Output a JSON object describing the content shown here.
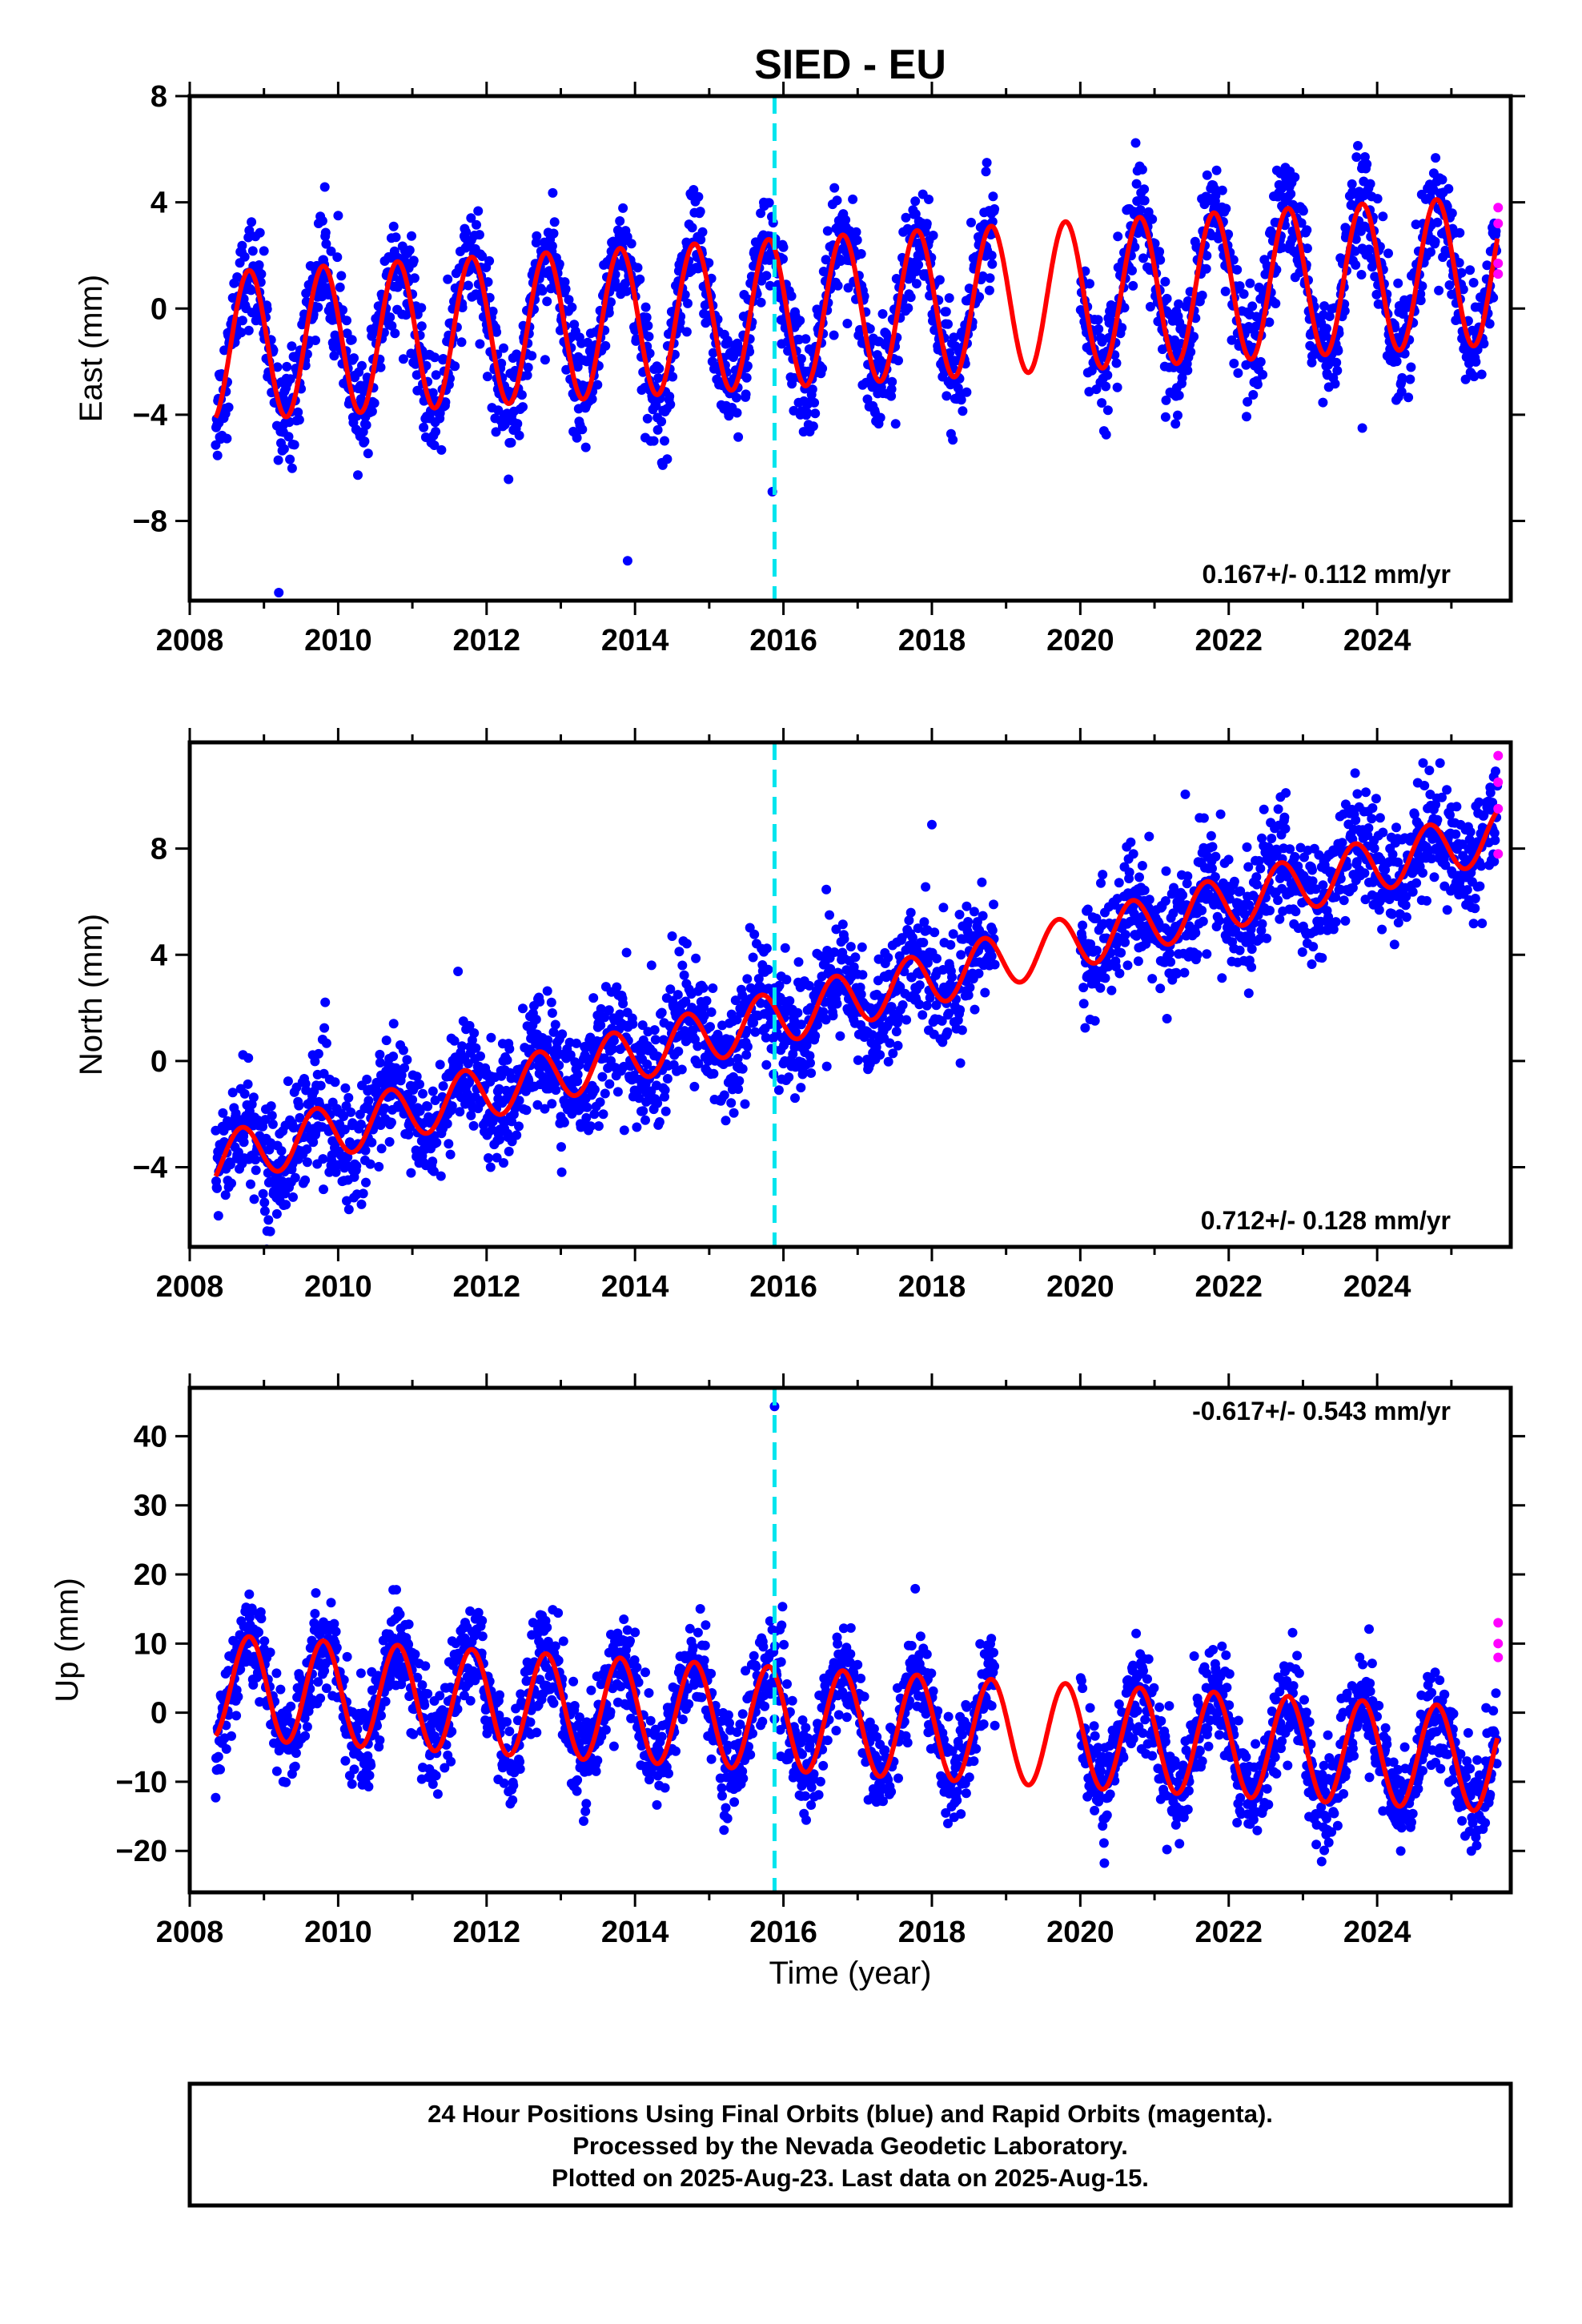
{
  "title": "SIED - EU",
  "chart_data": [
    {
      "type": "scatter",
      "panel": "east",
      "ylabel": "East (mm)",
      "xlabel": "",
      "xlim": [
        2008.0,
        2025.8
      ],
      "ylim": [
        -11,
        8
      ],
      "yticks": [
        -8,
        -4,
        0,
        4,
        8
      ],
      "ytick_labels": [
        "−8",
        "−4",
        "0",
        "4",
        "8"
      ],
      "xticks": [
        2008,
        2010,
        2012,
        2014,
        2016,
        2018,
        2020,
        2022,
        2024
      ],
      "xtick_labels": [
        "2008",
        "2010",
        "2012",
        "2014",
        "2016",
        "2018",
        "2020",
        "2022",
        "2024"
      ],
      "rate": "0.167+/- 0.112 mm/yr",
      "rate_position": "bottom-right",
      "event_line_x": 2015.88,
      "data_start": 2008.35,
      "data_end": 2025.62,
      "gap": [
        2018.85,
        2020.0
      ],
      "rapid_points": [
        {
          "x": 2025.63,
          "y": 3.8
        },
        {
          "x": 2025.63,
          "y": 3.2
        },
        {
          "x": 2025.63,
          "y": 1.7
        },
        {
          "x": 2025.63,
          "y": 1.3
        }
      ],
      "outliers": [
        {
          "x": 2009.2,
          "y": -10.7
        },
        {
          "x": 2013.9,
          "y": -9.5
        },
        {
          "x": 2015.85,
          "y": -6.9
        },
        {
          "x": 2023.8,
          "y": -4.5
        }
      ],
      "series": [
        {
          "name": "Final Orbits",
          "color": "#0000ff",
          "trend": {
            "intercept": -1.5,
            "slope": 0.167
          },
          "annual_amplitude": 2.8,
          "noise": 1.0
        },
        {
          "name": "Rapid Orbits",
          "color": "#ff00ff"
        },
        {
          "name": "Model",
          "color": "#ff0000"
        }
      ]
    },
    {
      "type": "scatter",
      "panel": "north",
      "ylabel": "North (mm)",
      "xlabel": "",
      "xlim": [
        2008.0,
        2025.8
      ],
      "ylim": [
        -7,
        12
      ],
      "yticks": [
        -4,
        0,
        4,
        8
      ],
      "ytick_labels": [
        "−4",
        "0",
        "4",
        "8"
      ],
      "xticks": [
        2008,
        2010,
        2012,
        2014,
        2016,
        2018,
        2020,
        2022,
        2024
      ],
      "xtick_labels": [
        "2008",
        "2010",
        "2012",
        "2014",
        "2016",
        "2018",
        "2020",
        "2022",
        "2024"
      ],
      "rate": "0.712+/- 0.128 mm/yr",
      "rate_position": "bottom-right",
      "event_line_x": 2015.88,
      "data_start": 2008.35,
      "data_end": 2025.62,
      "gap": [
        2018.85,
        2020.0
      ],
      "rapid_points": [
        {
          "x": 2025.63,
          "y": 11.5
        },
        {
          "x": 2025.63,
          "y": 10.5
        },
        {
          "x": 2025.63,
          "y": 9.5
        },
        {
          "x": 2025.63,
          "y": 7.8
        }
      ],
      "outliers": [
        {
          "x": 2018.0,
          "y": 8.9
        },
        {
          "x": 2014.5,
          "y": 4.7
        }
      ],
      "series": [
        {
          "name": "Final Orbits",
          "color": "#0000ff",
          "trend": {
            "intercept": -4.0,
            "slope": 0.712
          },
          "annual_amplitude": 1.0,
          "noise": 1.1
        },
        {
          "name": "Rapid Orbits",
          "color": "#ff00ff"
        },
        {
          "name": "Model",
          "color": "#ff0000"
        }
      ]
    },
    {
      "type": "scatter",
      "panel": "up",
      "ylabel": "Up (mm)",
      "xlabel": "Time (year)",
      "xlim": [
        2008.0,
        2025.8
      ],
      "ylim": [
        -26,
        47
      ],
      "yticks": [
        -20,
        -10,
        0,
        10,
        20,
        30,
        40
      ],
      "ytick_labels": [
        "−20",
        "−10",
        "0",
        "10",
        "20",
        "30",
        "40"
      ],
      "xticks": [
        2008,
        2010,
        2012,
        2014,
        2016,
        2018,
        2020,
        2022,
        2024
      ],
      "xtick_labels": [
        "2008",
        "2010",
        "2012",
        "2014",
        "2016",
        "2018",
        "2020",
        "2022",
        "2024"
      ],
      "rate": "-0.617+/- 0.543 mm/yr",
      "rate_position": "top-right",
      "event_line_x": 2015.88,
      "data_start": 2008.35,
      "data_end": 2025.62,
      "gap": [
        2018.85,
        2020.0
      ],
      "rapid_points": [
        {
          "x": 2025.63,
          "y": 13.0
        },
        {
          "x": 2025.63,
          "y": 10.0
        },
        {
          "x": 2025.63,
          "y": 8.0
        }
      ],
      "outliers": [
        {
          "x": 2015.88,
          "y": 44.3
        }
      ],
      "series": [
        {
          "name": "Final Orbits",
          "color": "#0000ff",
          "trend": {
            "intercept": 4.0,
            "slope": -0.617
          },
          "annual_amplitude": 7.5,
          "noise": 3.5
        },
        {
          "name": "Rapid Orbits",
          "color": "#ff00ff"
        },
        {
          "name": "Model",
          "color": "#ff0000"
        }
      ]
    }
  ],
  "footer": {
    "line1": "24 Hour Positions Using Final Orbits (blue) and Rapid Orbits (magenta).",
    "line2": "Processed by the Nevada Geodetic Laboratory.",
    "line3": "Plotted on 2025-Aug-23. Last data on 2025-Aug-15."
  },
  "colors": {
    "final": "#0000ff",
    "rapid": "#ff00ff",
    "model": "#ff0000",
    "event_line": "#00e5ee"
  }
}
